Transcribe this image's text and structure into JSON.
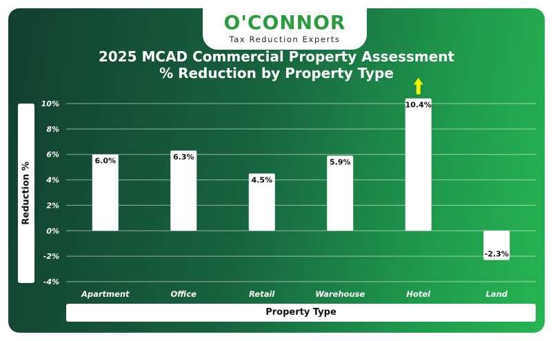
{
  "brand": {
    "name": "O'CONNOR",
    "tagline": "Tax Reduction Experts",
    "color": "#2c9a3e"
  },
  "chart_data": {
    "type": "bar",
    "title": "2025 MCAD Commercial Property Assessment",
    "subtitle": "% Reduction by Property Type",
    "xlabel": "Property Type",
    "ylabel": "Reduction %",
    "categories": [
      "Apartment",
      "Office",
      "Retail",
      "Warehouse",
      "Hotel",
      "Land"
    ],
    "values": [
      6.0,
      6.3,
      4.5,
      5.9,
      10.4,
      -2.3
    ],
    "value_labels": [
      "6.0%",
      "6.3%",
      "4.5%",
      "5.9%",
      "10.4%",
      "-2.3%"
    ],
    "ylim": [
      -4,
      10
    ],
    "yticks": [
      -4,
      -2,
      0,
      2,
      4,
      6,
      8,
      10
    ],
    "ytick_labels": [
      "-4%",
      "-2%",
      "0%",
      "2%",
      "4%",
      "6%",
      "8%",
      "10%"
    ],
    "grid": true,
    "bar_color": "#ffffff",
    "highlight_category": "Hotel",
    "highlight_color": "#f5f200"
  }
}
